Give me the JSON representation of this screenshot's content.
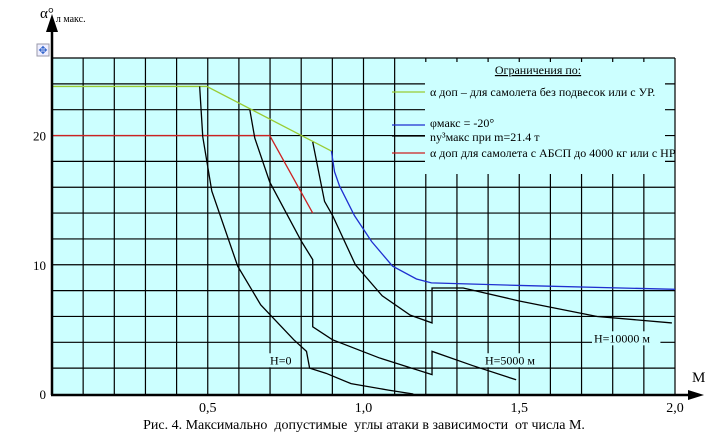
{
  "chart_data": {
    "type": "line",
    "title": "",
    "caption": "Рис. 4. Максимально  допустимые  углы атаки в зависимости  от числа М.",
    "xlabel": "M",
    "ylabel_main": "α°",
    "ylabel_sub": "л макс.",
    "xlim": [
      0,
      2.0
    ],
    "ylim": [
      0,
      26
    ],
    "grid": true,
    "x_ticks": [
      {
        "v": 0.5,
        "label": "0,5"
      },
      {
        "v": 1.0,
        "label": "1,0"
      },
      {
        "v": 1.5,
        "label": "1,5"
      },
      {
        "v": 2.0,
        "label": "2,0"
      }
    ],
    "y_ticks": [
      {
        "v": 0,
        "label": "0"
      },
      {
        "v": 10,
        "label": "10"
      },
      {
        "v": 20,
        "label": "20"
      }
    ],
    "legend": {
      "title": "Ограничения по:",
      "placement": "top-right",
      "items": [
        {
          "label": "α доп – для самолета без подвесок или с УР.",
          "color": "#99cc33"
        },
        {
          "label": "φмакс = -20°",
          "color": "#1f2fd0"
        },
        {
          "label": "nу³макс при m=21.4 т",
          "color": "#000000"
        },
        {
          "label": "α доп для самолета с АБСП до 4000 кг или с НР",
          "color": "#cc2222"
        }
      ]
    },
    "series": [
      {
        "name": "alpha_dop_clean",
        "color": "#99cc33",
        "points": [
          [
            0,
            23.8
          ],
          [
            0.497,
            23.8
          ],
          [
            0.897,
            18.8
          ]
        ]
      },
      {
        "name": "alpha_dop_ABSP",
        "color": "#cc2222",
        "points": [
          [
            0,
            20
          ],
          [
            0.699,
            20
          ],
          [
            0.837,
            14.0
          ]
        ]
      },
      {
        "name": "phi_max",
        "color": "#1f2fd0",
        "points": [
          [
            0.897,
            18.8
          ],
          [
            0.907,
            17.2
          ],
          [
            0.923,
            16.1
          ],
          [
            0.971,
            13.8
          ],
          [
            1.026,
            11.8
          ],
          [
            1.093,
            9.9
          ],
          [
            1.17,
            8.9
          ],
          [
            1.218,
            8.6
          ],
          [
            1.5,
            8.4
          ],
          [
            2.0,
            8.1
          ]
        ]
      },
      {
        "name": "H=0",
        "color": "#000000",
        "points": [
          [
            0.474,
            23.8
          ],
          [
            0.484,
            19.9
          ],
          [
            0.513,
            15.7
          ],
          [
            0.596,
            9.9
          ],
          [
            0.67,
            6.9
          ],
          [
            0.776,
            4.2
          ],
          [
            0.817,
            3.3
          ],
          [
            0.827,
            2.0
          ],
          [
            0.88,
            1.6
          ],
          [
            0.96,
            0.8
          ],
          [
            1.08,
            0.3
          ],
          [
            1.16,
            0
          ]
        ]
      },
      {
        "name": "H=5000 м",
        "color": "#000000",
        "points": [
          [
            0.635,
            22.0
          ],
          [
            0.651,
            19.8
          ],
          [
            0.699,
            16.4
          ],
          [
            0.801,
            11.8
          ],
          [
            0.837,
            10.4
          ],
          [
            0.837,
            5.2
          ],
          [
            0.9,
            4.2
          ],
          [
            1.05,
            2.8
          ],
          [
            1.22,
            1.5
          ],
          [
            1.22,
            3.3
          ],
          [
            1.35,
            2.2
          ],
          [
            1.49,
            1.1
          ]
        ]
      },
      {
        "name": "H=10000 м",
        "color": "#000000",
        "points": [
          [
            0.837,
            19.5
          ],
          [
            0.875,
            14.9
          ],
          [
            0.901,
            13.8
          ],
          [
            0.974,
            10.0
          ],
          [
            1.06,
            7.6
          ],
          [
            1.15,
            6.1
          ],
          [
            1.22,
            5.5
          ],
          [
            1.22,
            8.2
          ],
          [
            1.32,
            8.2
          ],
          [
            1.5,
            7.2
          ],
          [
            1.75,
            6.0
          ],
          [
            1.99,
            5.5
          ]
        ]
      }
    ],
    "annotations": [
      {
        "text": "H=0",
        "x": 0.7,
        "y": 2.3
      },
      {
        "text": "H=5000 м",
        "x": 1.39,
        "y": 2.3
      },
      {
        "text": "H=10000 м",
        "x": 1.74,
        "y": 4.0
      }
    ]
  }
}
